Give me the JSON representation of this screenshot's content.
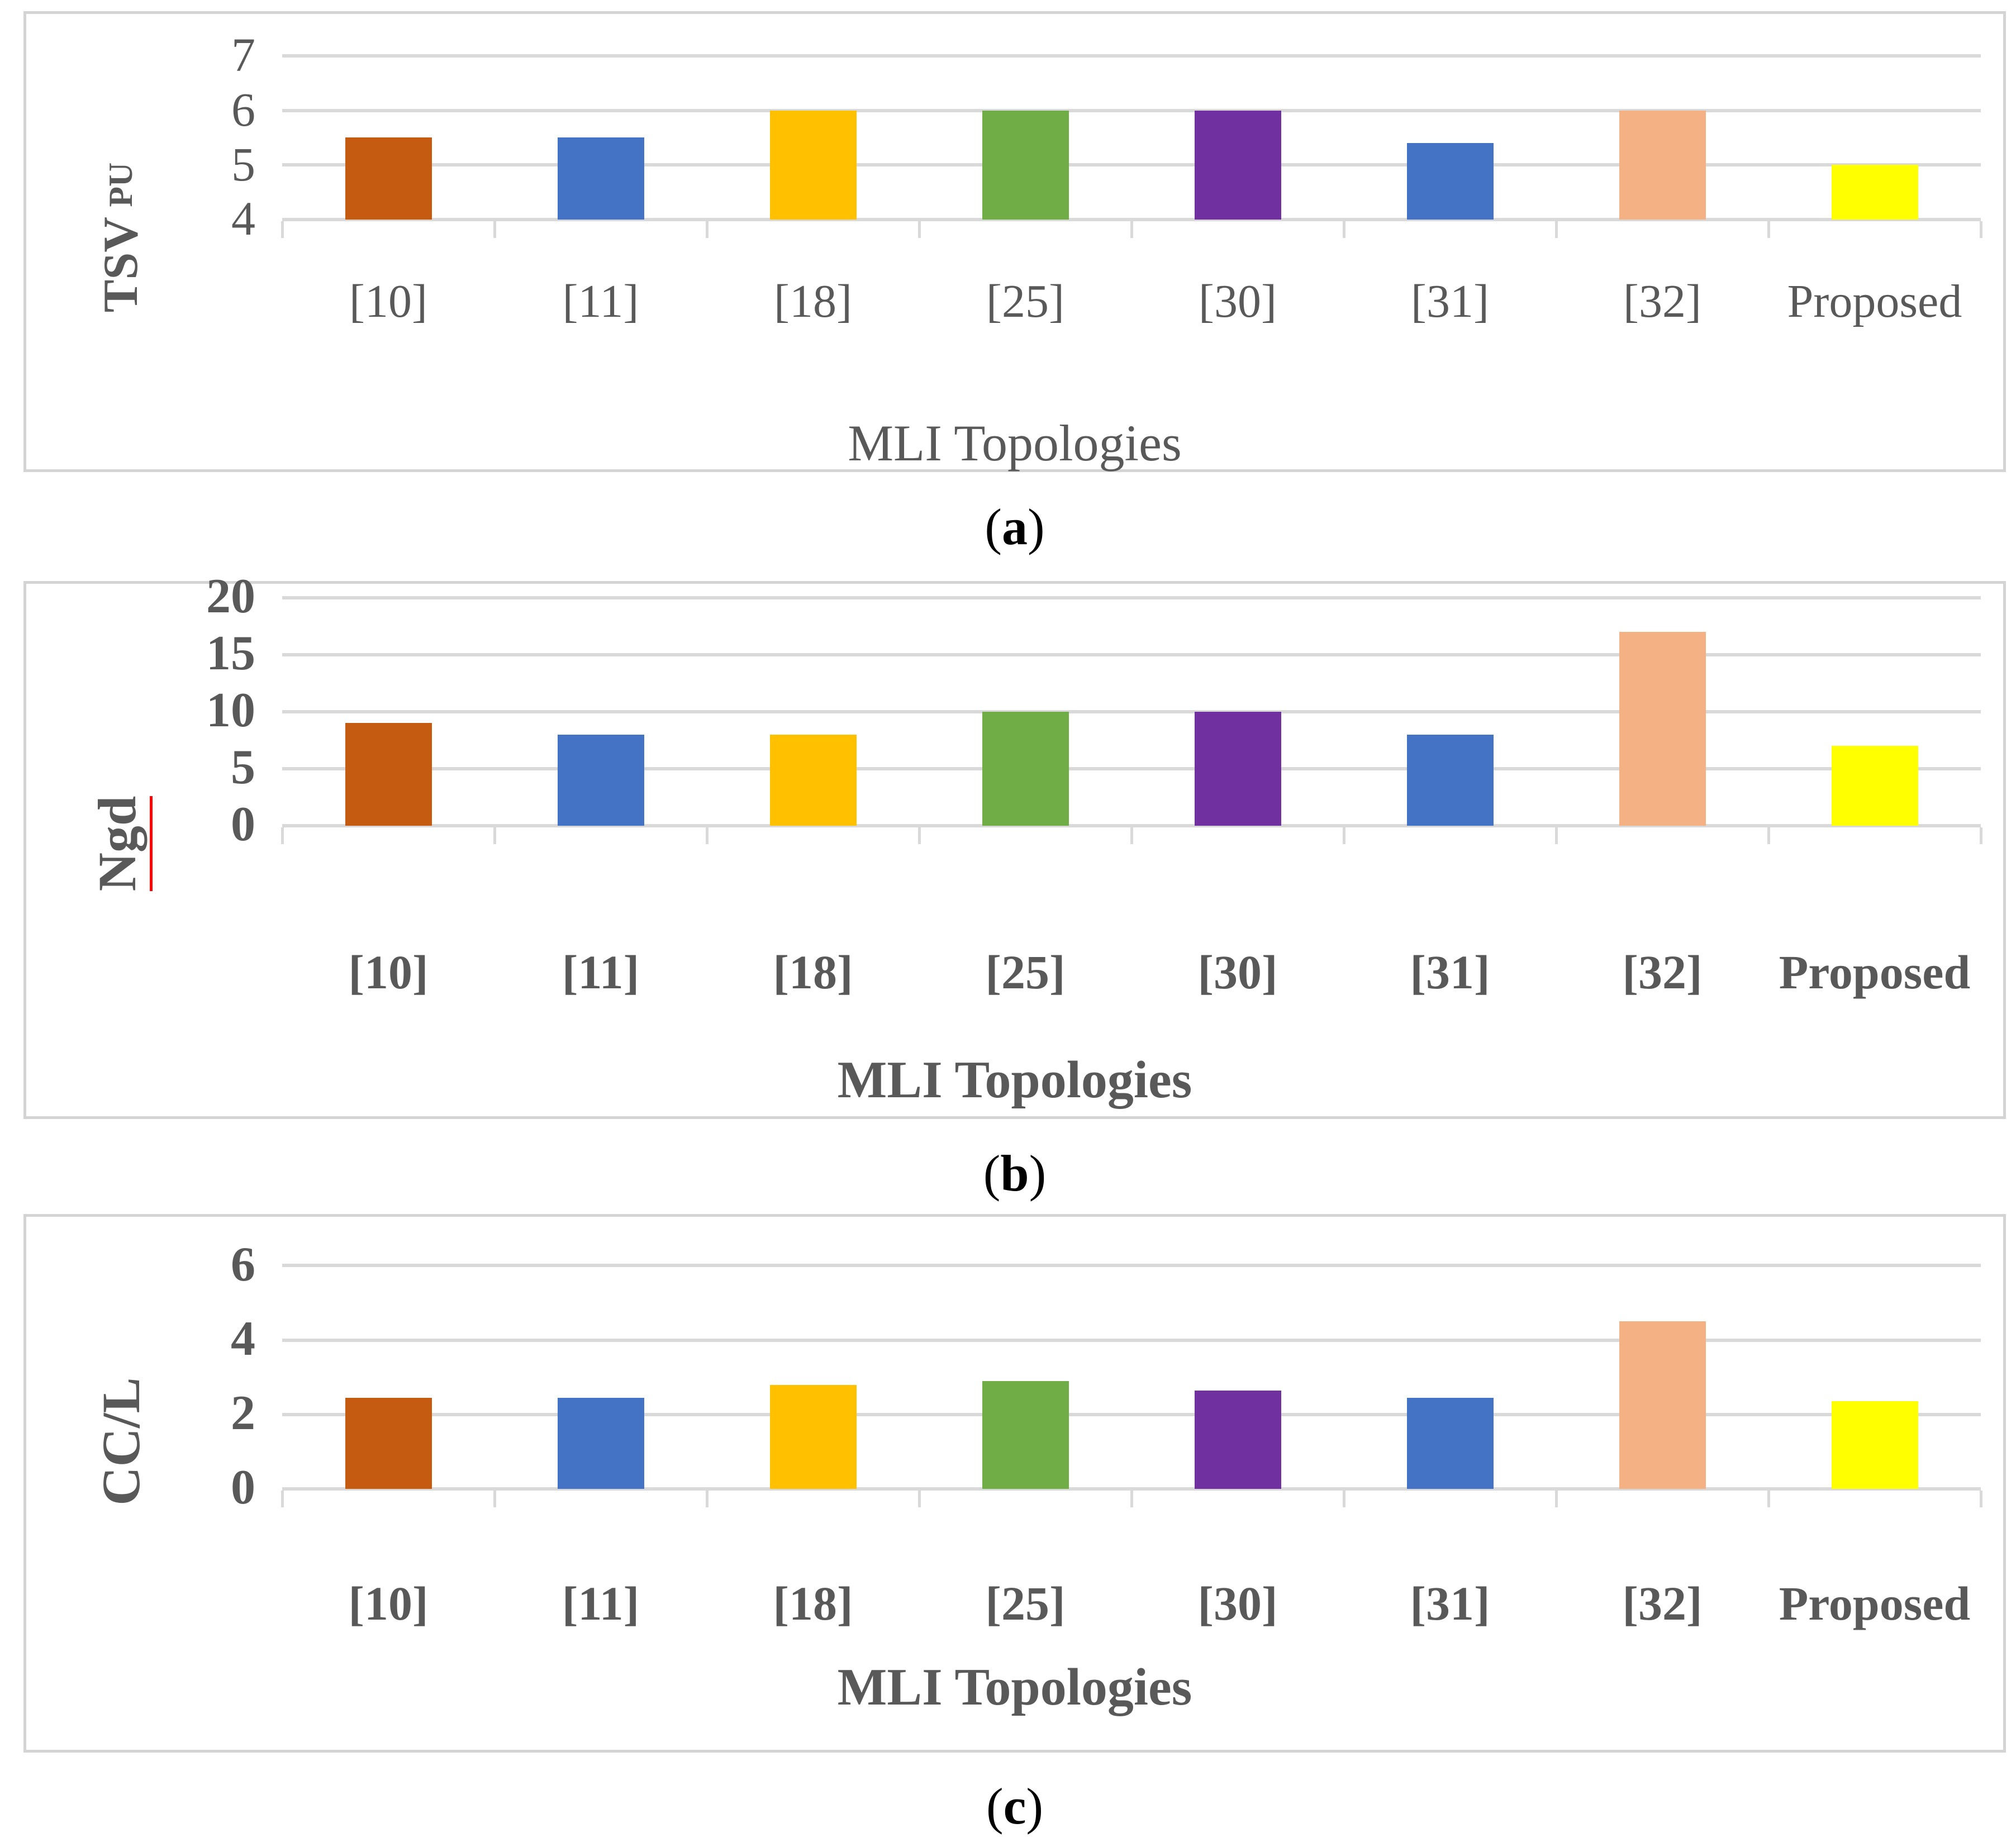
{
  "figure": {
    "x_axis_title": "MLI Topologies",
    "categories": [
      "[10]",
      "[11]",
      "[18]",
      "[25]",
      "[30]",
      "[31]",
      "[32]",
      "Proposed"
    ],
    "bar_colors": [
      "#C55A11",
      "#4472C4",
      "#FFC000",
      "#70AD47",
      "#7030A0",
      "#4472C4",
      "#F4B183",
      "#FFFF00"
    ],
    "text_color": "#595959",
    "gridline_color": "#D9D9D9",
    "frame_color": "#D4D4D4",
    "caption_color": "#000000",
    "ylabel_underline_color": "#FF0000"
  },
  "chart_data": [
    {
      "type": "bar",
      "panel_caption": "(a)",
      "caption_letter": "a",
      "ylabel": "TSV",
      "ylabel_suffix": "PU",
      "ylabel_underline": false,
      "xlabel": "MLI Topologies",
      "categories": [
        "[10]",
        "[11]",
        "[18]",
        "[25]",
        "[30]",
        "[31]",
        "[32]",
        "Proposed"
      ],
      "values": [
        5.5,
        5.5,
        6,
        6,
        6,
        5.4,
        6,
        5
      ],
      "ylim": [
        4,
        7
      ],
      "yticks": [
        4,
        5,
        6,
        7
      ],
      "grid": true,
      "legend": "none",
      "bold_axis_text": false
    },
    {
      "type": "bar",
      "panel_caption": "(b)",
      "caption_letter": "b",
      "ylabel": "Ngd",
      "ylabel_suffix": "",
      "ylabel_underline": true,
      "xlabel": "MLI Topologies",
      "categories": [
        "[10]",
        "[11]",
        "[18]",
        "[25]",
        "[30]",
        "[31]",
        "[32]",
        "Proposed"
      ],
      "values": [
        9,
        8,
        8,
        10,
        10,
        8,
        17,
        7
      ],
      "ylim": [
        0,
        20
      ],
      "yticks": [
        0,
        5,
        10,
        15,
        20
      ],
      "grid": true,
      "legend": "none",
      "bold_axis_text": true
    },
    {
      "type": "bar",
      "panel_caption": "(c)",
      "caption_letter": "c",
      "ylabel": "CC/L",
      "ylabel_suffix": "",
      "ylabel_underline": false,
      "xlabel": "MLI Topologies",
      "categories": [
        "[10]",
        "[11]",
        "[18]",
        "[25]",
        "[30]",
        "[31]",
        "[32]",
        "Proposed"
      ],
      "values": [
        2.45,
        2.45,
        2.8,
        2.9,
        2.65,
        2.45,
        4.5,
        2.35
      ],
      "ylim": [
        0,
        6
      ],
      "yticks": [
        0,
        2,
        4,
        6
      ],
      "grid": true,
      "legend": "none",
      "bold_axis_text": true
    }
  ]
}
